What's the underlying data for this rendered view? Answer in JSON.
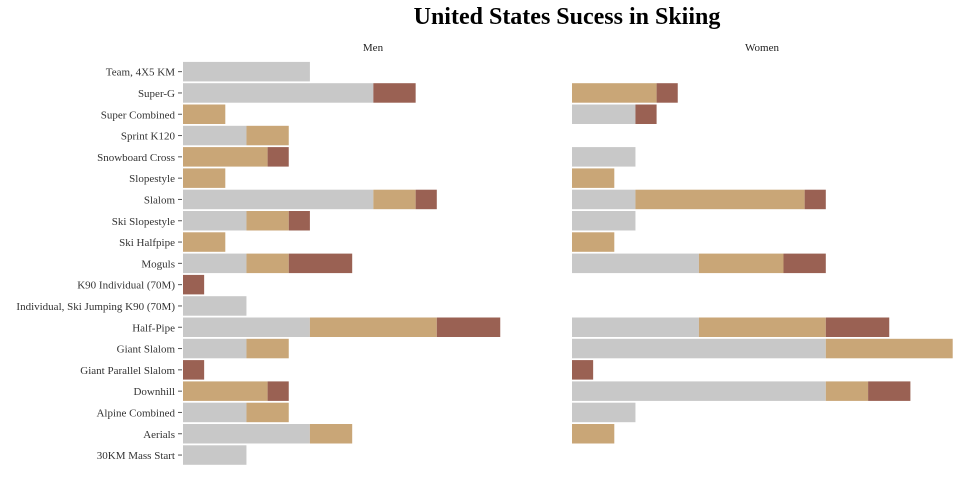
{
  "chart_data": {
    "type": "bar",
    "stacked": true,
    "orientation": "horizontal",
    "title": "United States Sucess in Skiing",
    "facets": [
      "Men",
      "Women"
    ],
    "categories": [
      "Team, 4X5 KM",
      "Super-G",
      "Super Combined",
      "Sprint K120",
      "Snowboard Cross",
      "Slopestyle",
      "Slalom",
      "Ski Slopestyle",
      "Ski Halfpipe",
      "Moguls",
      "K90 Individual (70M)",
      "Individual, Ski Jumping K90 (70M)",
      "Half-Pipe",
      "Giant Slalom",
      "Giant Parallel Slalom",
      "Downhill",
      "Alpine Combined",
      "Aerials",
      "30KM Mass Start"
    ],
    "series_colors": [
      "#c8c8c8",
      "#c9a677",
      "#9a6153"
    ],
    "panels": [
      {
        "facet": "Men",
        "series": [
          {
            "values": [
              6,
              9,
              0,
              3,
              0,
              0,
              9,
              3,
              0,
              3,
              0,
              3,
              6,
              3,
              0,
              0,
              3,
              6,
              3
            ]
          },
          {
            "values": [
              0,
              0,
              2,
              2,
              4,
              2,
              2,
              2,
              2,
              2,
              0,
              0,
              6,
              2,
              0,
              4,
              2,
              2,
              0
            ]
          },
          {
            "values": [
              0,
              2,
              0,
              0,
              1,
              0,
              1,
              1,
              0,
              3,
              1,
              0,
              3,
              0,
              1,
              1,
              0,
              0,
              0
            ]
          }
        ]
      },
      {
        "facet": "Women",
        "series": [
          {
            "values": [
              0,
              0,
              3,
              0,
              3,
              0,
              3,
              3,
              0,
              6,
              0,
              0,
              6,
              12,
              0,
              12,
              3,
              0,
              0
            ]
          },
          {
            "values": [
              0,
              4,
              0,
              0,
              0,
              2,
              8,
              0,
              2,
              4,
              0,
              0,
              6,
              6,
              0,
              2,
              0,
              2,
              0
            ]
          },
          {
            "values": [
              0,
              1,
              1,
              0,
              0,
              0,
              1,
              0,
              0,
              2,
              0,
              0,
              3,
              0,
              1,
              2,
              0,
              0,
              0
            ]
          }
        ]
      }
    ]
  }
}
